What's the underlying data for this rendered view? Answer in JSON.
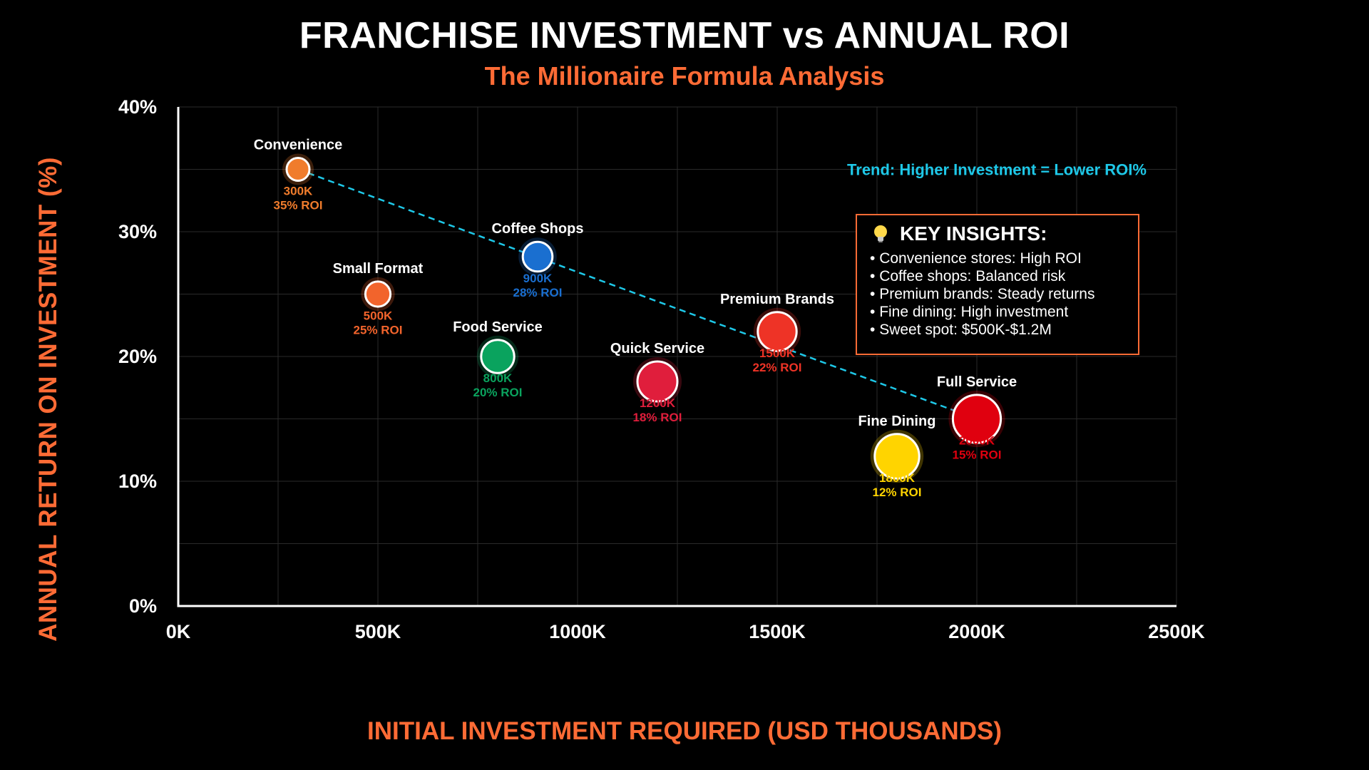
{
  "chart_data": {
    "type": "scatter",
    "title": "FRANCHISE INVESTMENT vs ANNUAL ROI",
    "subtitle": "The Millionaire Formula Analysis",
    "xlabel": "INITIAL INVESTMENT REQUIRED (USD THOUSANDS)",
    "ylabel": "ANNUAL RETURN ON INVESTMENT (%)",
    "xlim": [
      0,
      2500
    ],
    "ylim": [
      0,
      40
    ],
    "x_ticks": [
      0,
      500,
      1000,
      1500,
      2000,
      2500
    ],
    "x_tick_labels": [
      "0K",
      "500K",
      "1000K",
      "1500K",
      "2000K",
      "2500K"
    ],
    "y_ticks": [
      0,
      10,
      20,
      30,
      40
    ],
    "y_tick_labels": [
      "0%",
      "10%",
      "20%",
      "30%",
      "40%"
    ],
    "grid": true,
    "points": [
      {
        "name": "Convenience",
        "x": 300,
        "y": 35,
        "size": 1.0,
        "color": "#f07c2c",
        "value_label": "300K",
        "roi_label": "35% ROI"
      },
      {
        "name": "Small Format",
        "x": 500,
        "y": 25,
        "size": 1.1,
        "color": "#f2642c",
        "value_label": "500K",
        "roi_label": "25% ROI"
      },
      {
        "name": "Food Service",
        "x": 800,
        "y": 20,
        "size": 1.45,
        "color": "#0aa35e",
        "value_label": "800K",
        "roi_label": "20% ROI"
      },
      {
        "name": "Coffee Shops",
        "x": 900,
        "y": 28,
        "size": 1.3,
        "color": "#1a6fd0",
        "value_label": "900K",
        "roi_label": "28% ROI"
      },
      {
        "name": "Quick Service",
        "x": 1200,
        "y": 18,
        "size": 1.75,
        "color": "#e01e3c",
        "value_label": "1200K",
        "roi_label": "18% ROI"
      },
      {
        "name": "Premium Brands",
        "x": 1500,
        "y": 22,
        "size": 1.7,
        "color": "#ee3326",
        "value_label": "1500K",
        "roi_label": "22% ROI"
      },
      {
        "name": "Fine Dining",
        "x": 1800,
        "y": 12,
        "size": 1.95,
        "color": "#ffd400",
        "value_label": "1800K",
        "roi_label": "12% ROI"
      },
      {
        "name": "Full Service",
        "x": 2000,
        "y": 15,
        "size": 2.1,
        "color": "#e0000f",
        "value_label": "2000K",
        "roi_label": "15% ROI"
      }
    ],
    "trend_line": {
      "x": [
        300,
        2000
      ],
      "y": [
        35,
        15
      ],
      "color": "#1ec8e8",
      "label": "Trend: Higher Investment = Lower ROI%"
    }
  },
  "insights": {
    "title": "KEY INSIGHTS:",
    "icon": "lightbulb-icon",
    "border_color": "#ff6b35",
    "items": [
      "Convenience stores: High ROI",
      "Coffee shops: Balanced risk",
      "Premium brands: Steady returns",
      "Fine dining: High investment",
      "Sweet spot: $500K-$1.2M"
    ]
  },
  "colors": {
    "accent": "#ff6b35",
    "background": "#000000",
    "grid": "#2a2a2a",
    "axis": "#ffffff"
  }
}
